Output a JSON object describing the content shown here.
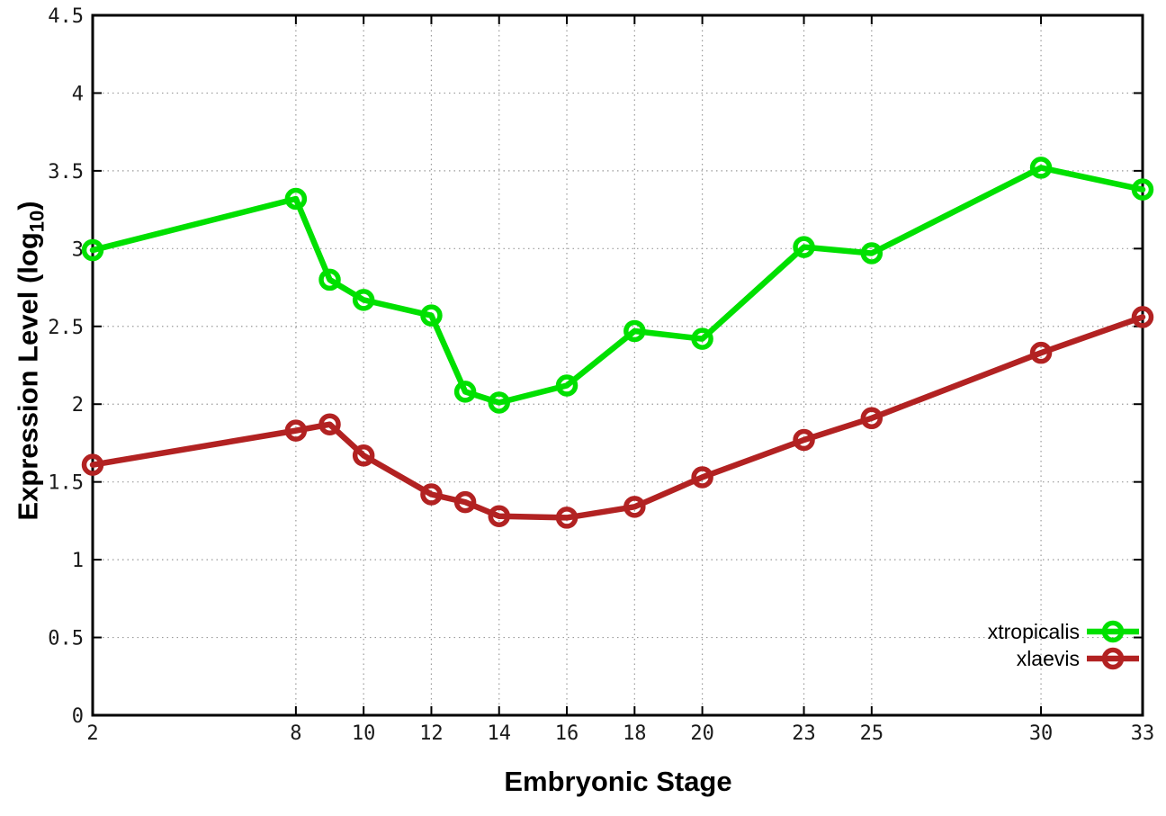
{
  "chart_data": {
    "type": "line",
    "title": "",
    "xlabel": "Embryonic Stage",
    "ylabel": "Expression Level (log10)",
    "ylabel_parts": {
      "pre": "Expression Level (log",
      "sub": "10",
      "post": ")"
    },
    "xlim": [
      2,
      33
    ],
    "ylim": [
      0,
      4.5
    ],
    "x_ticks": [
      2,
      8,
      10,
      12,
      14,
      16,
      18,
      20,
      23,
      25,
      30,
      33
    ],
    "y_ticks": [
      0,
      0.5,
      1,
      1.5,
      2,
      2.5,
      3,
      3.5,
      4,
      4.5
    ],
    "grid": true,
    "grid_style": "dotted",
    "legend_position": "bottom-right",
    "x": [
      2,
      8,
      9,
      10,
      12,
      13,
      14,
      16,
      18,
      20,
      23,
      25,
      30,
      33
    ],
    "series": [
      {
        "name": "xtropicalis",
        "color": "#00e000",
        "marker": "open-circle",
        "values": [
          2.99,
          3.32,
          2.8,
          2.67,
          2.57,
          2.08,
          2.01,
          2.12,
          2.47,
          2.42,
          3.01,
          2.97,
          3.52,
          3.38
        ]
      },
      {
        "name": "xlaevis",
        "color": "#b22222",
        "marker": "open-circle",
        "values": [
          1.61,
          1.83,
          1.87,
          1.67,
          1.42,
          1.37,
          1.28,
          1.27,
          1.34,
          1.53,
          1.77,
          1.91,
          2.33,
          2.56
        ]
      }
    ]
  },
  "colors": {
    "background": "#ffffff",
    "border": "#000000",
    "grid": "#9a9a9a",
    "tick_text": "#1a1a1a"
  }
}
